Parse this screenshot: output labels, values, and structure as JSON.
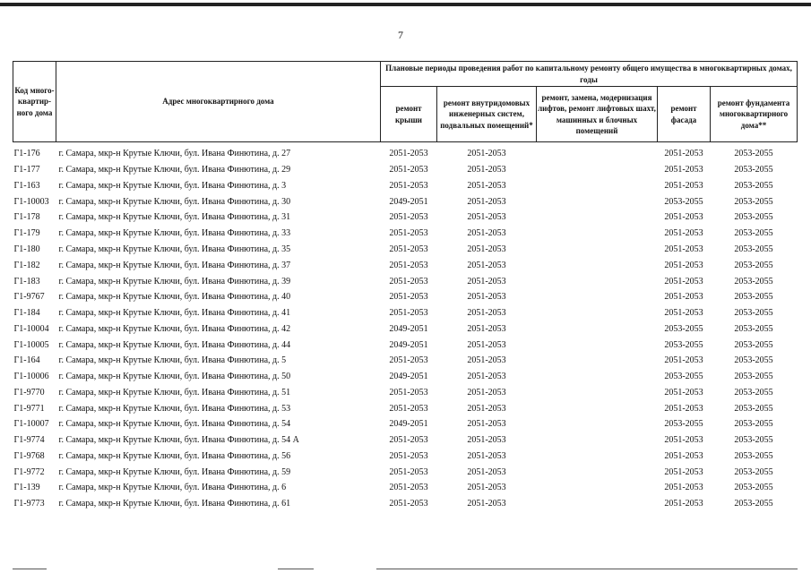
{
  "page_number": "7",
  "table": {
    "headers": {
      "code": "Код много-квартир-ного дома",
      "address": "Адрес многоквартирного дома",
      "group": "Плановые периоды проведения работ по капитальному ремонту общего имущества в многоквартирных домах, годы",
      "roof": "ремонт крыши",
      "internal": "ремонт внутридомовых инженерных систем, подвальных помещений*",
      "lifts": "ремонт, замена, модернизация лифтов, ремонт лифтовых шахт, машинных и блочных помещений",
      "facade": "ремонт фасада",
      "foundation": "ремонт фундамента многоквартирного дома**"
    },
    "rows": [
      {
        "code": "Г1-176",
        "address": "г. Самара, мкр-н Крутые Ключи, бул. Ивана Финютина, д. 27",
        "roof": "2051-2053",
        "internal": "2051-2053",
        "lifts": "",
        "facade": "2051-2053",
        "foundation": "2053-2055"
      },
      {
        "code": "Г1-177",
        "address": "г. Самара, мкр-н Крутые Ключи, бул. Ивана Финютина, д. 29",
        "roof": "2051-2053",
        "internal": "2051-2053",
        "lifts": "",
        "facade": "2051-2053",
        "foundation": "2053-2055"
      },
      {
        "code": "Г1-163",
        "address": "г. Самара, мкр-н Крутые Ключи, бул. Ивана Финютина, д. 3",
        "roof": "2051-2053",
        "internal": "2051-2053",
        "lifts": "",
        "facade": "2051-2053",
        "foundation": "2053-2055"
      },
      {
        "code": "Г1-10003",
        "address": "г. Самара, мкр-н Крутые Ключи, бул. Ивана Финютина, д. 30",
        "roof": "2049-2051",
        "internal": "2051-2053",
        "lifts": "",
        "facade": "2053-2055",
        "foundation": "2053-2055"
      },
      {
        "code": "Г1-178",
        "address": "г. Самара, мкр-н Крутые Ключи, бул. Ивана Финютина, д. 31",
        "roof": "2051-2053",
        "internal": "2051-2053",
        "lifts": "",
        "facade": "2051-2053",
        "foundation": "2053-2055"
      },
      {
        "code": "Г1-179",
        "address": "г. Самара, мкр-н Крутые Ключи, бул. Ивана Финютина, д. 33",
        "roof": "2051-2053",
        "internal": "2051-2053",
        "lifts": "",
        "facade": "2051-2053",
        "foundation": "2053-2055"
      },
      {
        "code": "Г1-180",
        "address": "г. Самара, мкр-н Крутые Ключи, бул. Ивана Финютина, д. 35",
        "roof": "2051-2053",
        "internal": "2051-2053",
        "lifts": "",
        "facade": "2051-2053",
        "foundation": "2053-2055"
      },
      {
        "code": "Г1-182",
        "address": "г. Самара, мкр-н Крутые Ключи, бул. Ивана Финютина, д. 37",
        "roof": "2051-2053",
        "internal": "2051-2053",
        "lifts": "",
        "facade": "2051-2053",
        "foundation": "2053-2055"
      },
      {
        "code": "Г1-183",
        "address": "г. Самара, мкр-н Крутые Ключи, бул. Ивана Финютина, д. 39",
        "roof": "2051-2053",
        "internal": "2051-2053",
        "lifts": "",
        "facade": "2051-2053",
        "foundation": "2053-2055"
      },
      {
        "code": "Г1-9767",
        "address": "г. Самара, мкр-н Крутые Ключи, бул. Ивана Финютина, д. 40",
        "roof": "2051-2053",
        "internal": "2051-2053",
        "lifts": "",
        "facade": "2051-2053",
        "foundation": "2053-2055"
      },
      {
        "code": "Г1-184",
        "address": "г. Самара, мкр-н Крутые Ключи, бул. Ивана Финютина, д. 41",
        "roof": "2051-2053",
        "internal": "2051-2053",
        "lifts": "",
        "facade": "2051-2053",
        "foundation": "2053-2055"
      },
      {
        "code": "Г1-10004",
        "address": "г. Самара, мкр-н Крутые Ключи, бул. Ивана Финютина, д. 42",
        "roof": "2049-2051",
        "internal": "2051-2053",
        "lifts": "",
        "facade": "2053-2055",
        "foundation": "2053-2055"
      },
      {
        "code": "Г1-10005",
        "address": "г. Самара, мкр-н Крутые Ключи, бул. Ивана Финютина, д. 44",
        "roof": "2049-2051",
        "internal": "2051-2053",
        "lifts": "",
        "facade": "2053-2055",
        "foundation": "2053-2055"
      },
      {
        "code": "Г1-164",
        "address": "г. Самара, мкр-н Крутые Ключи, бул. Ивана Финютина, д. 5",
        "roof": "2051-2053",
        "internal": "2051-2053",
        "lifts": "",
        "facade": "2051-2053",
        "foundation": "2053-2055"
      },
      {
        "code": "Г1-10006",
        "address": "г. Самара, мкр-н Крутые Ключи, бул. Ивана Финютина, д. 50",
        "roof": "2049-2051",
        "internal": "2051-2053",
        "lifts": "",
        "facade": "2053-2055",
        "foundation": "2053-2055"
      },
      {
        "code": "Г1-9770",
        "address": "г. Самара, мкр-н Крутые Ключи, бул. Ивана Финютина, д. 51",
        "roof": "2051-2053",
        "internal": "2051-2053",
        "lifts": "",
        "facade": "2051-2053",
        "foundation": "2053-2055"
      },
      {
        "code": "Г1-9771",
        "address": "г. Самара, мкр-н Крутые Ключи, бул. Ивана Финютина, д. 53",
        "roof": "2051-2053",
        "internal": "2051-2053",
        "lifts": "",
        "facade": "2051-2053",
        "foundation": "2053-2055"
      },
      {
        "code": "Г1-10007",
        "address": "г. Самара, мкр-н Крутые Ключи, бул. Ивана Финютина, д. 54",
        "roof": "2049-2051",
        "internal": "2051-2053",
        "lifts": "",
        "facade": "2053-2055",
        "foundation": "2053-2055"
      },
      {
        "code": "Г1-9774",
        "address": "г. Самара, мкр-н Крутые Ключи, бул. Ивана Финютина, д. 54 А",
        "roof": "2051-2053",
        "internal": "2051-2053",
        "lifts": "",
        "facade": "2051-2053",
        "foundation": "2053-2055"
      },
      {
        "code": "Г1-9768",
        "address": "г. Самара, мкр-н Крутые Ключи, бул. Ивана Финютина, д. 56",
        "roof": "2051-2053",
        "internal": "2051-2053",
        "lifts": "",
        "facade": "2051-2053",
        "foundation": "2053-2055"
      },
      {
        "code": "Г1-9772",
        "address": "г. Самара, мкр-н Крутые Ключи, бул. Ивана Финютина, д. 59",
        "roof": "2051-2053",
        "internal": "2051-2053",
        "lifts": "",
        "facade": "2051-2053",
        "foundation": "2053-2055"
      },
      {
        "code": "Г1-139",
        "address": "г. Самара, мкр-н Крутые Ключи, бул. Ивана Финютина, д. 6",
        "roof": "2051-2053",
        "internal": "2051-2053",
        "lifts": "",
        "facade": "2051-2053",
        "foundation": "2053-2055"
      },
      {
        "code": "Г1-9773",
        "address": "г. Самара, мкр-н Крутые Ключи, бул. Ивана Финютина, д. 61",
        "roof": "2051-2053",
        "internal": "2051-2053",
        "lifts": "",
        "facade": "2051-2053",
        "foundation": "2053-2055"
      }
    ]
  }
}
